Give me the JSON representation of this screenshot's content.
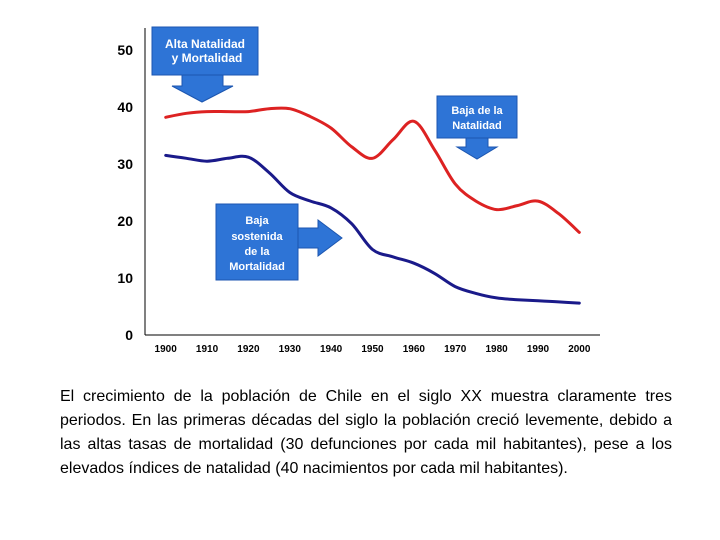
{
  "chart_data": {
    "type": "line",
    "title": "",
    "xlabel": "",
    "ylabel": "",
    "x": [
      1900,
      1910,
      1920,
      1930,
      1940,
      1950,
      1960,
      1970,
      1980,
      1990,
      2000
    ],
    "xlim": [
      1895,
      2005
    ],
    "ylim": [
      0,
      50
    ],
    "yticks": [
      0,
      10,
      20,
      30,
      40,
      50
    ],
    "grid": false,
    "series": [
      {
        "name": "Natalidad",
        "color": "#dd2222",
        "points": [
          [
            1900,
            38.2
          ],
          [
            1905,
            38.9
          ],
          [
            1910,
            39.2
          ],
          [
            1915,
            39.2
          ],
          [
            1920,
            39.2
          ],
          [
            1925,
            39.7
          ],
          [
            1930,
            39.7
          ],
          [
            1935,
            38.3
          ],
          [
            1940,
            36.3
          ],
          [
            1945,
            33
          ],
          [
            1950,
            31
          ],
          [
            1955,
            34.3
          ],
          [
            1960,
            37.5
          ],
          [
            1965,
            32.5
          ],
          [
            1970,
            26.5
          ],
          [
            1975,
            23.5
          ],
          [
            1980,
            22
          ],
          [
            1985,
            22.7
          ],
          [
            1990,
            23.5
          ],
          [
            1995,
            21.3
          ],
          [
            2000,
            18
          ]
        ]
      },
      {
        "name": "Mortalidad",
        "color": "#1a1a8a",
        "points": [
          [
            1900,
            31.5
          ],
          [
            1905,
            31
          ],
          [
            1910,
            30.5
          ],
          [
            1915,
            31
          ],
          [
            1920,
            31.2
          ],
          [
            1925,
            28.5
          ],
          [
            1930,
            25
          ],
          [
            1935,
            23.5
          ],
          [
            1940,
            22.3
          ],
          [
            1945,
            19.5
          ],
          [
            1950,
            15
          ],
          [
            1955,
            13.7
          ],
          [
            1960,
            12.6
          ],
          [
            1965,
            10.8
          ],
          [
            1970,
            8.5
          ],
          [
            1975,
            7.3
          ],
          [
            1980,
            6.5
          ],
          [
            1985,
            6.2
          ],
          [
            1990,
            6
          ],
          [
            1995,
            5.8
          ],
          [
            2000,
            5.6
          ]
        ]
      }
    ],
    "annotations": [
      {
        "id": "alta",
        "lines": [
          "Alta Natalidad",
          "y Mortalidad"
        ],
        "arrow": "down"
      },
      {
        "id": "baja-natalidad",
        "lines": [
          "Baja de la",
          "Natalidad"
        ],
        "arrow": "down"
      },
      {
        "id": "baja-mortalidad",
        "lines": [
          "Baja",
          "sostenida",
          "de la",
          "Mortalidad"
        ],
        "arrow": "right"
      }
    ]
  },
  "colors": {
    "callout_fill": "#2e74d6",
    "callout_border": "#1c56b0",
    "axis": "#000000"
  },
  "caption": "El crecimiento de la población de Chile en el siglo XX muestra claramente tres periodos. En las primeras décadas del siglo la población creció levemente, debido a las altas tasas de mortalidad (30 defunciones por cada mil habitantes), pese a los elevados índices de natalidad (40 nacimientos por cada mil habitantes)."
}
